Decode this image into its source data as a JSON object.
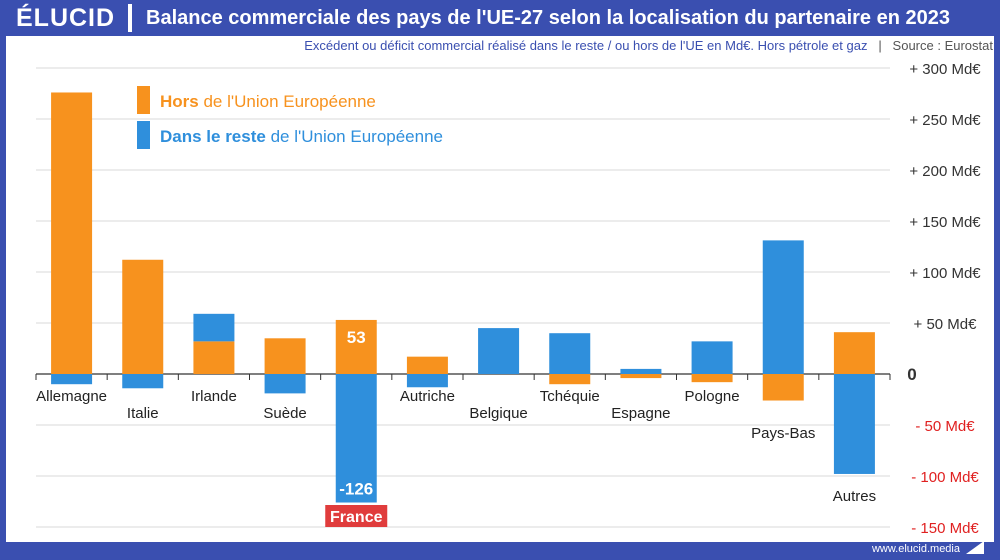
{
  "header": {
    "logo": "ÉLUCID",
    "title": "Balance commerciale des pays de l'UE-27 selon la localisation du partenaire en 2023",
    "subtitle": "Excédent ou déficit commercial réalisé dans le reste / ou hors de l'UE en Md€. Hors pétrole et gaz",
    "source": "Source : Eurostat"
  },
  "footer": {
    "site": "www.elucid.media"
  },
  "colors": {
    "orange": "#f7921e",
    "blue": "#2f8fdc",
    "brand": "#3a4fb0",
    "negative_tick": "#e02020",
    "highlight": "#e03c3c"
  },
  "legend": {
    "hors_bold": "Hors",
    "hors_rest": " de l'Union Européenne",
    "dans_bold": "Dans le reste",
    "dans_rest": " de l'Union Européenne"
  },
  "chart_data": {
    "type": "bar",
    "ylim": [
      -150,
      300
    ],
    "y_ticks": [
      {
        "value": 300,
        "label": "+ 300 Md€"
      },
      {
        "value": 250,
        "label": "+ 250 Md€"
      },
      {
        "value": 200,
        "label": "+ 200 Md€"
      },
      {
        "value": 150,
        "label": "+ 150 Md€"
      },
      {
        "value": 100,
        "label": "+ 100 Md€"
      },
      {
        "value": 50,
        "label": "+ 50 Md€"
      },
      {
        "value": 0,
        "label": "0"
      },
      {
        "value": -50,
        "label": "- 50 Md€"
      },
      {
        "value": -100,
        "label": "- 100 Md€"
      },
      {
        "value": -150,
        "label": "- 150 Md€"
      }
    ],
    "categories": [
      "Allemagne",
      "Italie",
      "Irlande",
      "Suède",
      "France",
      "Autriche",
      "Belgique",
      "Tchéquie",
      "Espagne",
      "Pologne",
      "Pays-Bas",
      "Autres"
    ],
    "series": [
      {
        "name": "Hors de l'Union Européenne",
        "values": [
          276,
          112,
          32,
          35,
          53,
          17,
          0,
          -10,
          -4,
          -8,
          -26,
          41
        ]
      },
      {
        "name": "Dans le reste de l'Union Européenne",
        "values": [
          -10,
          -14,
          27,
          -19,
          -126,
          -13,
          45,
          40,
          5,
          32,
          131,
          -98
        ]
      }
    ],
    "data_labels": [
      {
        "category": "France",
        "series": 0,
        "text": "53"
      },
      {
        "category": "France",
        "series": 1,
        "text": "-126"
      }
    ],
    "highlight_category": "France",
    "legend_position": "top-left",
    "grid": true
  }
}
